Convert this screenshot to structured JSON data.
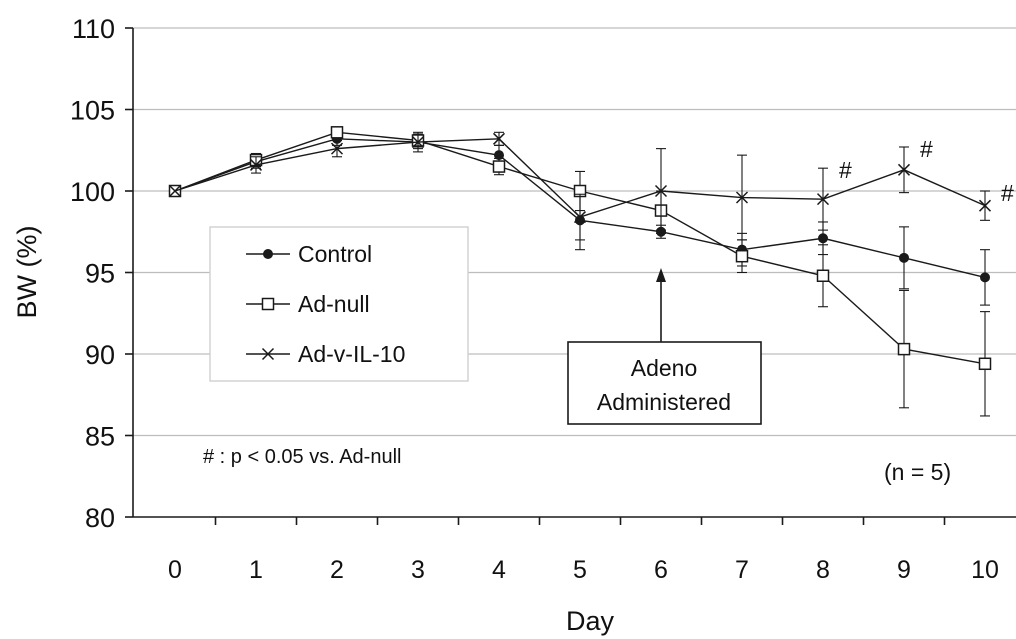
{
  "chart_data": {
    "type": "line",
    "xlabel": "Day",
    "ylabel": "BW (%)",
    "x": [
      0,
      1,
      2,
      3,
      4,
      5,
      6,
      7,
      8,
      9,
      10
    ],
    "xlim": [
      -0.5,
      10.5
    ],
    "ylim": [
      80,
      110
    ],
    "yticks": [
      80,
      85,
      90,
      95,
      100,
      105,
      110
    ],
    "grid": "horizontal",
    "series": [
      {
        "name": "Control",
        "marker": "filled-circle",
        "values": [
          100,
          101.8,
          103.2,
          103.0,
          102.2,
          98.2,
          97.5,
          96.4,
          97.1,
          95.9,
          94.7
        ],
        "errors": [
          0,
          0.4,
          0.4,
          0.4,
          0.6,
          1.8,
          0.4,
          1.0,
          1.0,
          1.9,
          1.7
        ]
      },
      {
        "name": "Ad-null",
        "marker": "open-square",
        "values": [
          100,
          101.9,
          103.6,
          103.1,
          101.5,
          100.0,
          98.8,
          96.0,
          94.8,
          90.3,
          89.4
        ],
        "errors": [
          0,
          0.4,
          0.3,
          0.4,
          0.5,
          1.2,
          1.2,
          1.0,
          1.9,
          3.6,
          3.2
        ]
      },
      {
        "name": "Ad-v-IL-10",
        "marker": "cross",
        "values": [
          100,
          101.6,
          102.6,
          103.0,
          103.2,
          98.4,
          100.0,
          99.6,
          99.5,
          101.3,
          99.1
        ],
        "errors": [
          0,
          0.5,
          0.5,
          0.6,
          0.4,
          1.4,
          2.6,
          2.6,
          1.9,
          1.4,
          0.9
        ]
      }
    ],
    "significance_marks": [
      {
        "x": 8,
        "label": "#"
      },
      {
        "x": 9,
        "label": "#"
      },
      {
        "x": 10,
        "label": "#"
      }
    ],
    "annotations": {
      "arrow_box_line1": "Adeno",
      "arrow_box_line2": "Administered",
      "arrow_day": 6,
      "significance_note": "# : p < 0.05 vs. Ad-null",
      "n_label": "(n = 5)"
    },
    "legend_position": "left-center"
  },
  "colors": {
    "line": "#1a1a1a",
    "grid": "#bdbdbd",
    "background": "#ffffff"
  }
}
